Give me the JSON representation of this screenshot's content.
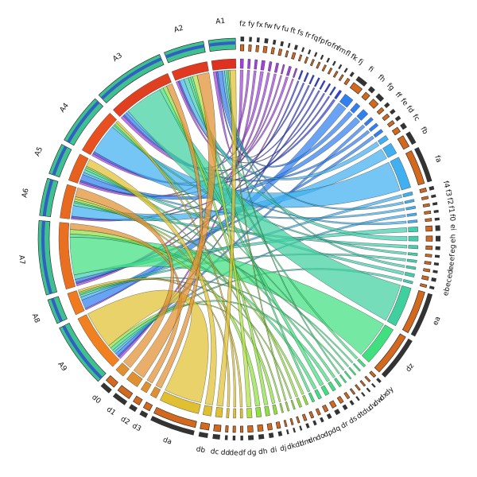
{
  "chart_data": {
    "type": "chord",
    "groups": [
      {
        "name": "A9",
        "color": "#f08020"
      },
      {
        "name": "A8",
        "color": "#f07a20"
      },
      {
        "name": "A7",
        "color": "#e87020"
      },
      {
        "name": "A6",
        "color": "#e86a20"
      },
      {
        "name": "A5",
        "color": "#e86020"
      },
      {
        "name": "A4",
        "color": "#e85020"
      },
      {
        "name": "A3",
        "color": "#e04020"
      },
      {
        "name": "A2",
        "color": "#e03a20"
      },
      {
        "name": "A1",
        "color": "#e03020"
      }
    ],
    "segments": [
      {
        "name": "fz",
        "value": 20,
        "color": "#a040e0",
        "source": "A1"
      },
      {
        "name": "fy",
        "value": 15,
        "color": "#a040e0",
        "source": "A5"
      },
      {
        "name": "fx",
        "value": 15,
        "color": "#a040e0",
        "source": "A9"
      },
      {
        "name": "fw",
        "value": 20,
        "color": "#a040e0",
        "source": "A3"
      },
      {
        "name": "fv",
        "value": 15,
        "color": "#a040e0",
        "source": "A7"
      },
      {
        "name": "fu",
        "value": 15,
        "color": "#a040e0",
        "source": "A2"
      },
      {
        "name": "ft",
        "value": 10,
        "color": "#a040e0",
        "source": "A6"
      },
      {
        "name": "fs",
        "value": 15,
        "color": "#a040e0",
        "source": "A4"
      },
      {
        "name": "fr",
        "value": 10,
        "color": "#a040e0",
        "source": "A8"
      },
      {
        "name": "fq",
        "value": 10,
        "color": "#3040e0",
        "source": "A1"
      },
      {
        "name": "fp",
        "value": 10,
        "color": "#3040e0",
        "source": "A5"
      },
      {
        "name": "fo",
        "value": 10,
        "color": "#3040e0",
        "source": "A9"
      },
      {
        "name": "fn",
        "value": 10,
        "color": "#3040e0",
        "source": "A3"
      },
      {
        "name": "fm",
        "value": 10,
        "color": "#3040e0",
        "source": "A7"
      },
      {
        "name": "fl",
        "value": 10,
        "color": "#3040e0",
        "source": "A2"
      },
      {
        "name": "fk",
        "value": 10,
        "color": "#3040e0",
        "source": "A6"
      },
      {
        "name": "fj",
        "value": 15,
        "color": "#3040e0",
        "source": "A4"
      },
      {
        "name": "fi",
        "value": 60,
        "color": "#3080f0",
        "source": "A8"
      },
      {
        "name": "fh",
        "value": 30,
        "color": "#3080f0",
        "source": "A1"
      },
      {
        "name": "fg",
        "value": 40,
        "color": "#3080f0",
        "source": "A5"
      },
      {
        "name": "ff",
        "value": 20,
        "color": "#3080f0",
        "source": "A9"
      },
      {
        "name": "fe",
        "value": 20,
        "color": "#3080f0",
        "source": "A3"
      },
      {
        "name": "fd",
        "value": 20,
        "color": "#3080f0",
        "source": "A7"
      },
      {
        "name": "fc",
        "value": 30,
        "color": "#40b0f0",
        "source": "A2"
      },
      {
        "name": "fb",
        "value": 70,
        "color": "#40b0f0",
        "source": "A6"
      },
      {
        "name": "fa",
        "value": 200,
        "color": "#40b0f0",
        "source": "A4"
      },
      {
        "name": "f4",
        "value": 20,
        "color": "#40b0f0",
        "source": "A8"
      },
      {
        "name": "f3",
        "value": 15,
        "color": "#40b0f0",
        "source": "A1"
      },
      {
        "name": "f2",
        "value": 15,
        "color": "#40b0f0",
        "source": "A5"
      },
      {
        "name": "f1",
        "value": 15,
        "color": "#40b0f0",
        "source": "A9"
      },
      {
        "name": "f0",
        "value": 15,
        "color": "#40b0f0",
        "source": "A3"
      },
      {
        "name": "ei",
        "value": 30,
        "color": "#40d0b0",
        "source": "A7"
      },
      {
        "name": "eh",
        "value": 30,
        "color": "#40d0b0",
        "source": "A2"
      },
      {
        "name": "eg",
        "value": 20,
        "color": "#40d0b0",
        "source": "A6"
      },
      {
        "name": "ef",
        "value": 15,
        "color": "#40d0b0",
        "source": "A4"
      },
      {
        "name": "ee",
        "value": 15,
        "color": "#40d0b0",
        "source": "A8"
      },
      {
        "name": "ed",
        "value": 15,
        "color": "#40d0b0",
        "source": "A1"
      },
      {
        "name": "ec",
        "value": 20,
        "color": "#40d0b0",
        "source": "A5"
      },
      {
        "name": "eb",
        "value": 15,
        "color": "#40d0b0",
        "source": "A9"
      },
      {
        "name": "ea",
        "value": 250,
        "color": "#40d0a0",
        "source": "A3"
      },
      {
        "name": "dz",
        "value": 250,
        "color": "#40e080",
        "source": "A7"
      },
      {
        "name": "dy",
        "value": 15,
        "color": "#40e080",
        "source": "A2"
      },
      {
        "name": "dx",
        "value": 10,
        "color": "#40e080",
        "source": "A6"
      },
      {
        "name": "dw",
        "value": 10,
        "color": "#40e080",
        "source": "A4"
      },
      {
        "name": "dv",
        "value": 10,
        "color": "#40e080",
        "source": "A8"
      },
      {
        "name": "du",
        "value": 10,
        "color": "#40e080",
        "source": "A1"
      },
      {
        "name": "dt",
        "value": 15,
        "color": "#40e080",
        "source": "A5"
      },
      {
        "name": "ds",
        "value": 20,
        "color": "#40e080",
        "source": "A9"
      },
      {
        "name": "dr",
        "value": 25,
        "color": "#40e080",
        "source": "A3"
      },
      {
        "name": "dq",
        "value": 20,
        "color": "#40e080",
        "source": "A7"
      },
      {
        "name": "dp",
        "value": 15,
        "color": "#40e080",
        "source": "A2"
      },
      {
        "name": "do",
        "value": 15,
        "color": "#90e040",
        "source": "A6"
      },
      {
        "name": "dn",
        "value": 15,
        "color": "#90e040",
        "source": "A4"
      },
      {
        "name": "dm",
        "value": 10,
        "color": "#90e040",
        "source": "A8"
      },
      {
        "name": "dl",
        "value": 10,
        "color": "#90e040",
        "source": "A1"
      },
      {
        "name": "dk",
        "value": 10,
        "color": "#90e040",
        "source": "A5"
      },
      {
        "name": "dj",
        "value": 20,
        "color": "#90e040",
        "source": "A9"
      },
      {
        "name": "di",
        "value": 25,
        "color": "#90e040",
        "source": "A3"
      },
      {
        "name": "dh",
        "value": 30,
        "color": "#90e040",
        "source": "A7"
      },
      {
        "name": "dg",
        "value": 30,
        "color": "#b0e040",
        "source": "A2"
      },
      {
        "name": "df",
        "value": 15,
        "color": "#e0c030",
        "source": "A6"
      },
      {
        "name": "de",
        "value": 15,
        "color": "#e0c030",
        "source": "A4"
      },
      {
        "name": "dd",
        "value": 15,
        "color": "#e0c030",
        "source": "A8"
      },
      {
        "name": "dc",
        "value": 40,
        "color": "#e0c030",
        "source": "A1"
      },
      {
        "name": "db",
        "value": 50,
        "color": "#e0c030",
        "source": "A5"
      },
      {
        "name": "da",
        "value": 250,
        "color": "#e0c030",
        "source": "A9"
      },
      {
        "name": "d3",
        "value": 40,
        "color": "#e09030",
        "source": "A3"
      },
      {
        "name": "d2",
        "value": 40,
        "color": "#e09030",
        "source": "A7"
      },
      {
        "name": "d1",
        "value": 80,
        "color": "#e09030",
        "source": "A2"
      },
      {
        "name": "d0",
        "value": 60,
        "color": "#e09030",
        "source": "A6"
      }
    ]
  }
}
